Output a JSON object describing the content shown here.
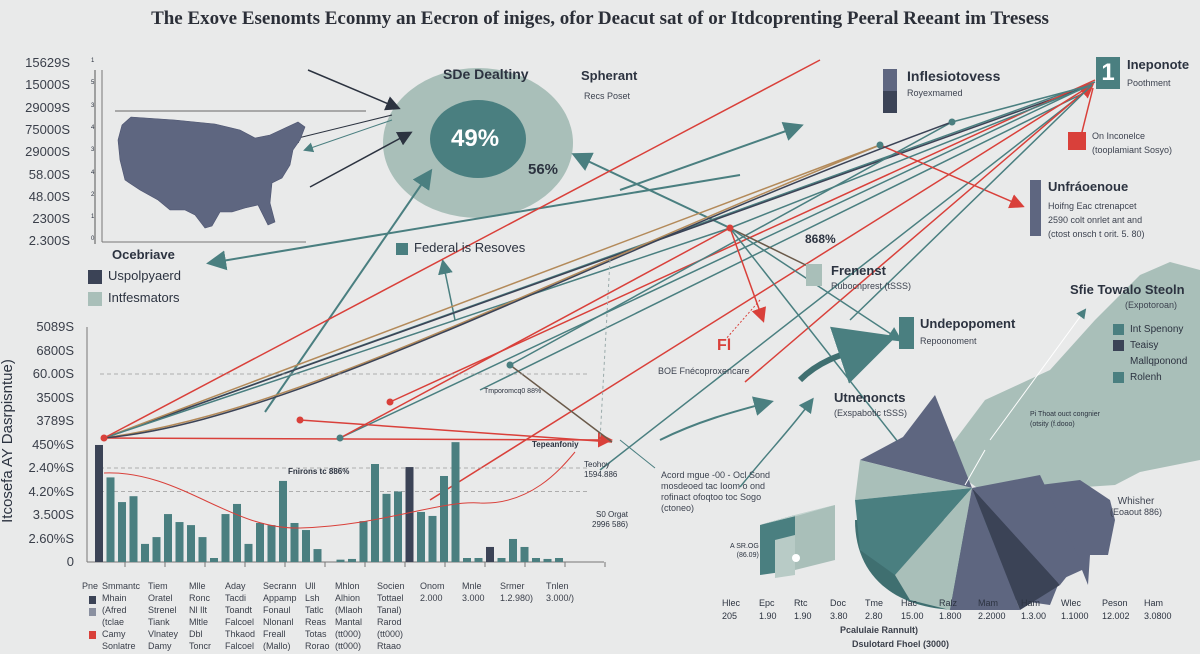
{
  "title": "The Exove Esenomts Econmy an Eecron of iniges, ofor Deacut sat of or Itdcoprenting Peeral Reeant im Tresess",
  "colors": {
    "teal": "#4a7f80",
    "dark": "#3b4356",
    "slate": "#5e6680",
    "sage": "#a9bfb9",
    "red": "#d9403a",
    "bg": "#e9eaea"
  },
  "map_panel": {
    "ticks": [
      "15629S",
      "15000S",
      "29009S",
      "75000S",
      "29000S",
      "58.00S",
      "48.00S",
      "2300S",
      "2.300S"
    ],
    "inner_ticks": [
      "1",
      "5",
      "3",
      "4",
      "3",
      "4",
      "2",
      "1",
      "0"
    ],
    "legend_title": "Ocebriave",
    "legend": [
      {
        "label": "Uspolpyaerd",
        "color": "#3b4356"
      },
      {
        "label": "Intfesmators",
        "color": "#a9bfb9"
      }
    ]
  },
  "circle": {
    "title": "SDe Dealtiny",
    "inner_value": "49%",
    "outer_value": "56%"
  },
  "spherant": {
    "title": "Spherant",
    "sub": "Recs Poset"
  },
  "federal": {
    "label": "Federal is Resoves"
  },
  "inflesiotovess": {
    "title": "Inflesiotovess",
    "sub": "Royexmamed"
  },
  "ineponote": {
    "badge": "1",
    "title": "Ineponote",
    "sub": "Poothment"
  },
  "on_inconcle": {
    "line1": "On Inconelce",
    "line2": "(tooplamiant Sosyo)"
  },
  "unfraoenoue": {
    "title": "Unfráoenoue",
    "lines": [
      "Hoifng Eac ctrenapcet",
      "2590 colt onrlet ant and",
      "(ctost onsch t orit. 5. 80)"
    ]
  },
  "pct_868": "868%",
  "frenenst": {
    "title": "Frenenst",
    "sub": "Rubocnprest (tSSS)"
  },
  "undepopoment": {
    "title": "Undepopoment",
    "sub": "Repoonoment"
  },
  "fn_label": "Fl",
  "boe_label": "BOE Fnécoproxencare",
  "unenoncts": {
    "title": "Utnenoncts",
    "sub": "(Exspabotic tSSS)"
  },
  "sfie": {
    "title": "Sfie Towalo Steoln",
    "sub": "(Expotoroan)",
    "legend": [
      {
        "label": "Int Spenony",
        "color": "#4a7f80"
      },
      {
        "label": "Teaisy",
        "color": "#3b4356"
      },
      {
        "label": "Mallqponond",
        "color": "#a9bfb9"
      },
      {
        "label": "Rolenh",
        "color": "#4a7f80"
      }
    ]
  },
  "pie_note": {
    "line1": "Pi Thoat ouct congnier",
    "line2": "(otsity (f.dooo)"
  },
  "whisher": {
    "title": "Whisher",
    "sub": "(Eoaout 886)"
  },
  "acord_note": [
    "Acord mgue -00 - Ocl Sond",
    "mosdeoed tac Ioom o ond",
    "rofinact ofoqtoo toc Sogo",
    "(ctoneo)"
  ],
  "box_label": {
    "line1": "A SR.OG",
    "line2": "(86.09)"
  },
  "bar_panel": {
    "ylabel": "Itcosefa AY Dasrpisntue)",
    "ticks": [
      "5089S",
      "6800S",
      "60.00S",
      "3500S",
      "3789S",
      "450%S",
      "2.40%S",
      "4.20%S",
      "3.500S",
      "2.60%S",
      "0"
    ],
    "annot_frion": "Fnirons tc 886%",
    "annot_tepe": "Tepeanfoniy",
    "annot_tech": [
      "Teohoy",
      "1594.886"
    ],
    "annot_sq": [
      "S0 Orgat",
      "2996 586)"
    ],
    "annot_mid": "Tmporomcq0 88%"
  },
  "bottom_legend": {
    "lead": "Pne",
    "columns": [
      [
        "Smmantc",
        "Mhain",
        "(Afred",
        "(tclae",
        "Camy",
        "Sonlatre"
      ],
      [
        "Tiem",
        "Oratel",
        "Strenel",
        "Tiank",
        "Vlnatey",
        "Damy"
      ],
      [
        "Mlle",
        "Ronc",
        "Nl Ilt",
        "Mltle",
        "Dbl",
        "Toncr"
      ],
      [
        "Aday",
        "Tacdi",
        "Toandt",
        "Falcoel",
        "Thkaod",
        "Falcoel"
      ],
      [
        "Secrann",
        "Appamp",
        "Fonaul",
        "Nlonanl",
        "Freall",
        "(Mallo)"
      ],
      [
        "Ull",
        "Lsh",
        "Tatlc",
        "Reas",
        "Totas",
        "Rorao"
      ],
      [
        "Mhlon",
        "Alhion",
        "(Mlaoh",
        "Mantal",
        "(tt000)",
        "(tt000)"
      ],
      [
        "Socien",
        "Tottael",
        "Tanal)",
        "Rarod",
        "(tt000)",
        "Rtaao"
      ],
      [
        "Onom",
        "2.000"
      ],
      [
        "Mnle",
        "3.000"
      ],
      [
        "Srmer",
        "1.2.980)"
      ],
      [
        "Tnlen",
        "3.000/)"
      ]
    ]
  },
  "bottom_table": {
    "headers": [
      "Hlec",
      "Epc",
      "Rtc",
      "Doc",
      "Tme",
      "Hac",
      "Ralz",
      "Mam",
      "Ham",
      "Wlec",
      "Peson",
      "Ham"
    ],
    "values": [
      "205",
      "1.90",
      "1.90",
      "3.80",
      "2.80",
      "15.00",
      "1.800",
      "2.2000",
      "1.3.00",
      "1.1000",
      "12.002",
      "3.0800"
    ],
    "caption1": "Pcalulaie Rannult)",
    "caption2": "Dsulotard Fhoel (3000)"
  },
  "chart_data": {
    "type": "bar",
    "title": "",
    "ylabel": "Itcosefa AY Dasrpisntue)",
    "xlabel": "",
    "ylim": [
      0,
      10
    ],
    "grid": "dashed reference lines at 3, 4 and 8",
    "values": [
      4.98,
      3.6,
      2.55,
      2.8,
      0.77,
      1.06,
      2.04,
      1.7,
      1.57,
      1.06,
      0.17,
      2.04,
      2.47,
      0.77,
      1.66,
      1.57,
      3.45,
      1.66,
      1.36,
      0.55,
      0,
      0.1,
      0.13,
      1.74,
      4.17,
      2.9,
      3.0,
      4.04,
      2.13,
      1.96,
      3.66,
      5.1,
      0.17,
      0.17,
      0.64,
      0.17,
      0.98,
      0.64,
      0.17,
      0.13,
      0.17
    ],
    "dark_indices": [
      0,
      27,
      34
    ],
    "trend_curve": "smooth red curve dipping mid-chart"
  }
}
